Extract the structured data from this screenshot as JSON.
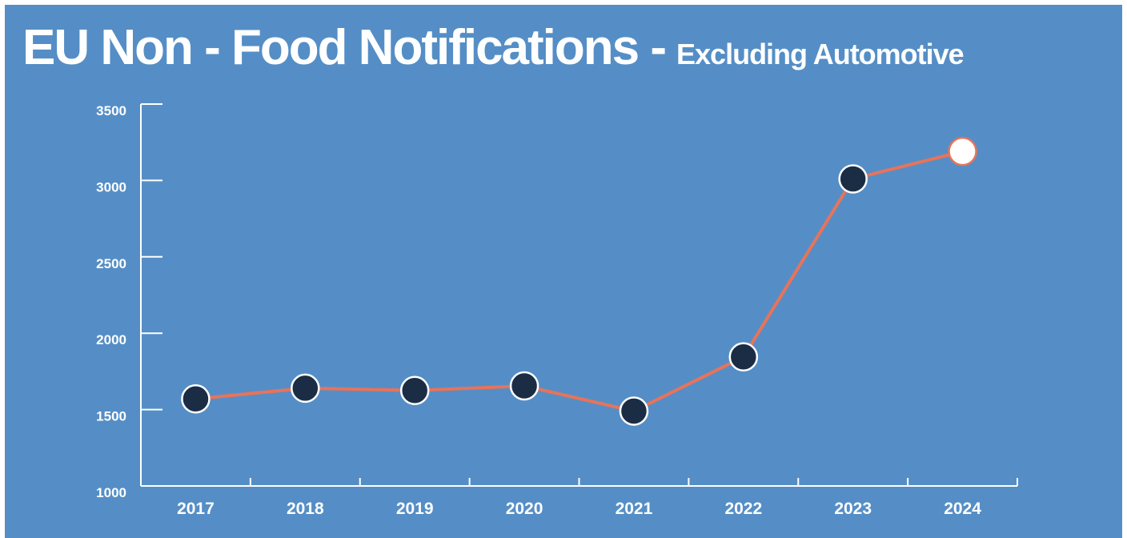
{
  "chart_data": {
    "type": "line",
    "title": "EU Non - Food Notifications -",
    "subtitle": "Excluding Automotive",
    "categories": [
      "2017",
      "2018",
      "2019",
      "2020",
      "2021",
      "2022",
      "2023",
      "2024"
    ],
    "values": [
      1570,
      1640,
      1625,
      1655,
      1490,
      1845,
      3010,
      3190
    ],
    "color": "#e8735a",
    "marker_colors": [
      "#1b2d45",
      "#1b2d45",
      "#1b2d45",
      "#1b2d45",
      "#1b2d45",
      "#1b2d45",
      "#1b2d45",
      "#ffffff"
    ],
    "ylim": [
      1000,
      3500
    ],
    "yticks": [
      1000,
      1500,
      2000,
      2500,
      3000,
      3500
    ]
  }
}
